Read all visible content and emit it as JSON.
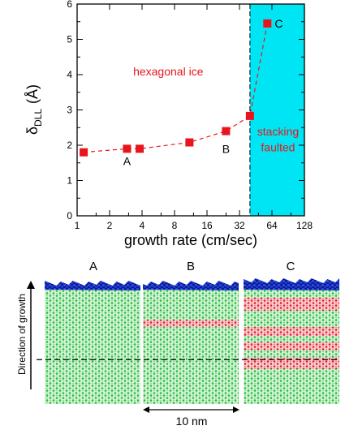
{
  "chart_data": {
    "type": "scatter",
    "xlabel": "growth rate (cm/sec)",
    "ylabel_symbol": "δ",
    "ylabel_subscript": "DLL",
    "ylabel_unit": "(Å)",
    "x_scale": "log2",
    "xlim": [
      1,
      128
    ],
    "ylim": [
      0,
      6
    ],
    "x_ticks": [
      "1",
      "2",
      "4",
      "8",
      "16",
      "32",
      "64",
      "128"
    ],
    "y_ticks": [
      "0",
      "1",
      "2",
      "3",
      "4",
      "5",
      "6"
    ],
    "series": [
      {
        "x": [
          1.15,
          2.9,
          3.8,
          11.0,
          24.0,
          40.0,
          58.0
        ],
        "y": [
          1.8,
          1.9,
          1.9,
          2.08,
          2.4,
          2.83,
          5.45
        ],
        "color": "#e8161c",
        "line_style": "dashed"
      }
    ],
    "point_labels": [
      {
        "text": "A",
        "x": 2.9,
        "y": 1.55
      },
      {
        "text": "B",
        "x": 24.0,
        "y": 1.9
      },
      {
        "text": "C",
        "x": 74.0,
        "y": 5.45
      }
    ],
    "region_boundary_x": 40,
    "region_color": "#00e5f3",
    "annotations": {
      "region_left": "hexagonal ice",
      "region_right_line1": "stacking",
      "region_right_line2": "faulted"
    },
    "text_color": "#e8161c"
  },
  "snapshots": {
    "panels": [
      {
        "label": "A",
        "red_bands": []
      },
      {
        "label": "B",
        "red_bands": [
          [
            0.28,
            0.34
          ]
        ]
      },
      {
        "label": "C",
        "red_bands": [
          [
            0.09,
            0.2
          ],
          [
            0.34,
            0.42
          ],
          [
            0.47,
            0.54
          ],
          [
            0.6,
            0.7
          ]
        ]
      }
    ],
    "growth_direction_label": "Direction of growth",
    "scale_label": "10 nm",
    "dashed_line_level": 0.62,
    "colors": {
      "surface": "#1e3cd6",
      "hexagonal": "#1fbe3c",
      "stacking": "#e5182a"
    }
  }
}
